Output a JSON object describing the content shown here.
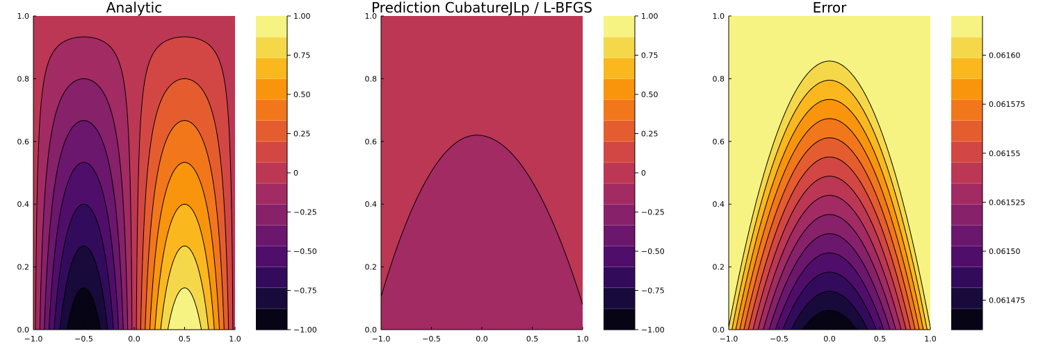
{
  "chart_data": [
    {
      "type": "heatmap",
      "subtype": "filled-contour",
      "title": "Analytic",
      "xlim": [
        -1.0,
        1.0
      ],
      "ylim": [
        0.0,
        1.0
      ],
      "x_ticks": [
        "−1.0",
        "−0.5",
        "0.0",
        "0.5",
        "1.0"
      ],
      "x_tick_values": [
        -1.0,
        -0.5,
        0.0,
        0.5,
        1.0
      ],
      "y_ticks": [
        "0.0",
        "0.2",
        "0.4",
        "0.6",
        "0.8",
        "1.0"
      ],
      "y_tick_values": [
        0.0,
        0.2,
        0.4,
        0.6,
        0.8,
        1.0
      ],
      "colorbar": {
        "min": -1.0,
        "max": 1.0,
        "levels": 15,
        "ticks": [
          "−1.00",
          "−0.75",
          "−0.50",
          "−0.25",
          "0",
          "0.25",
          "0.50",
          "0.75",
          "1.00"
        ],
        "tick_values": [
          -1.0,
          -0.75,
          -0.5,
          -0.25,
          0.0,
          0.25,
          0.5,
          0.75,
          1.0
        ]
      },
      "field": "sin(pi*x)*(1-y)",
      "contour_levels": [
        -1.0,
        -0.857,
        -0.714,
        -0.571,
        -0.429,
        -0.286,
        -0.143,
        0.0,
        0.143,
        0.286,
        0.429,
        0.571,
        0.714,
        0.857,
        1.0
      ]
    },
    {
      "type": "heatmap",
      "subtype": "filled-contour",
      "title": "Prediction CubatureJLp / L-BFGS",
      "xlim": [
        -1.0,
        1.0
      ],
      "ylim": [
        0.0,
        1.0
      ],
      "x_ticks": [
        "−1.0",
        "−0.5",
        "0.0",
        "0.5",
        "1.0"
      ],
      "x_tick_values": [
        -1.0,
        -0.5,
        0.0,
        0.5,
        1.0
      ],
      "y_ticks": [
        "0.0",
        "0.2",
        "0.4",
        "0.6",
        "0.8",
        "1.0"
      ],
      "y_tick_values": [
        0.0,
        0.2,
        0.4,
        0.6,
        0.8,
        1.0
      ],
      "colorbar": {
        "min": -1.0,
        "max": 1.0,
        "levels": 15,
        "ticks": [
          "−1.00",
          "−0.75",
          "−0.50",
          "−0.25",
          "0",
          "0.25",
          "0.50",
          "0.75",
          "1.00"
        ],
        "tick_values": [
          -1.0,
          -0.75,
          -0.5,
          -0.25,
          0.0,
          0.25,
          0.5,
          0.75,
          1.0
        ]
      },
      "regions": [
        {
          "name": "upper",
          "value": 0.0
        },
        {
          "name": "inner",
          "value": -0.1
        }
      ],
      "boundary_curve": {
        "peak_x": -0.05,
        "peak_y": 0.62,
        "y_at_x_min": 0.105,
        "y_at_x_max": 0.08
      }
    },
    {
      "type": "heatmap",
      "subtype": "filled-contour",
      "title": "Error",
      "xlim": [
        -1.0,
        1.0
      ],
      "ylim": [
        0.0,
        1.0
      ],
      "x_ticks": [
        "−1.0",
        "−0.5",
        "0.0",
        "0.5",
        "1.0"
      ],
      "x_tick_values": [
        -1.0,
        -0.5,
        0.0,
        0.5,
        1.0
      ],
      "y_ticks": [
        "0.0",
        "0.2",
        "0.4",
        "0.6",
        "0.8",
        "1.0"
      ],
      "y_tick_values": [
        0.0,
        0.2,
        0.4,
        0.6,
        0.8,
        1.0
      ],
      "colorbar": {
        "min": 0.06146,
        "max": 0.06162,
        "levels": 15,
        "ticks": [
          "0.061475",
          "0.06150",
          "0.061525",
          "0.06155",
          "0.061575",
          "0.06160"
        ],
        "tick_values": [
          0.061475,
          0.0615,
          0.061525,
          0.06155,
          0.061575,
          0.0616
        ]
      },
      "field": "0.06146 + 0.00016*min(1, 0.925*x^2 + 1.09*y)",
      "contour_levels": [
        0.061467,
        0.061478,
        0.061489,
        0.0615,
        0.061511,
        0.061522,
        0.061533,
        0.061544,
        0.061555,
        0.061566,
        0.061577,
        0.061588,
        0.061599,
        0.06161
      ]
    }
  ],
  "colormap": {
    "name": "inferno",
    "stops": [
      "#000004",
      "#0c0826",
      "#240c4f",
      "#420a68",
      "#5d126e",
      "#781c6d",
      "#932667",
      "#ae305c",
      "#c73e4c",
      "#dc5039",
      "#ed6925",
      "#f78410",
      "#fba40a",
      "#f8c932",
      "#f2e661",
      "#fcffa4"
    ]
  }
}
